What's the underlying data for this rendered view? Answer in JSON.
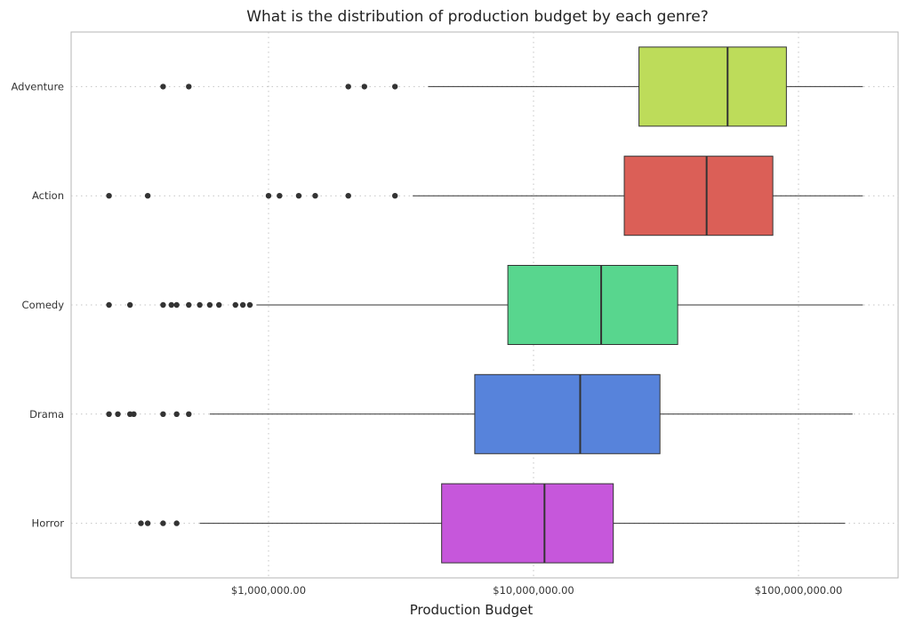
{
  "chart_data": {
    "type": "boxplot",
    "orientation": "horizontal",
    "title": "What is the distribution of production budget by each genre?",
    "xlabel": "Production Budget",
    "ylabel": "",
    "x_scale": "log",
    "xlim": [
      220000,
      230000000
    ],
    "x_ticks": [
      1000000,
      10000000,
      100000000
    ],
    "x_tick_labels": [
      "$1,000,000.00",
      "$10,000,000.00",
      "$100,000,000.00"
    ],
    "grid": true,
    "categories": [
      "Adventure",
      "Action",
      "Comedy",
      "Drama",
      "Horror"
    ],
    "colors": {
      "Adventure": "#bddc5a",
      "Action": "#db5f57",
      "Comedy": "#58d68e",
      "Drama": "#5783db",
      "Horror": "#c657db"
    },
    "series": [
      {
        "category": "Adventure",
        "whisker_low": 4000000,
        "q1": 25000000,
        "median": 54000000,
        "q3": 90000000,
        "whisker_high": 175000000,
        "outliers": [
          400000,
          500000,
          2000000,
          2300000,
          3000000
        ]
      },
      {
        "category": "Action",
        "whisker_low": 3500000,
        "q1": 22000000,
        "median": 45000000,
        "q3": 80000000,
        "whisker_high": 175000000,
        "outliers": [
          250000,
          350000,
          1000000,
          1100000,
          1300000,
          1500000,
          2000000,
          3000000
        ]
      },
      {
        "category": "Comedy",
        "whisker_low": 900000,
        "q1": 8000000,
        "median": 18000000,
        "q3": 35000000,
        "whisker_high": 175000000,
        "outliers": [
          250000,
          300000,
          400000,
          430000,
          450000,
          500000,
          550000,
          600000,
          650000,
          750000,
          800000,
          850000
        ]
      },
      {
        "category": "Drama",
        "whisker_low": 600000,
        "q1": 6000000,
        "median": 15000000,
        "q3": 30000000,
        "whisker_high": 160000000,
        "outliers": [
          250000,
          270000,
          300000,
          310000,
          400000,
          450000,
          500000
        ]
      },
      {
        "category": "Horror",
        "whisker_low": 550000,
        "q1": 4500000,
        "median": 11000000,
        "q3": 20000000,
        "whisker_high": 150000000,
        "outliers": [
          330000,
          350000,
          400000,
          450000
        ]
      }
    ]
  }
}
